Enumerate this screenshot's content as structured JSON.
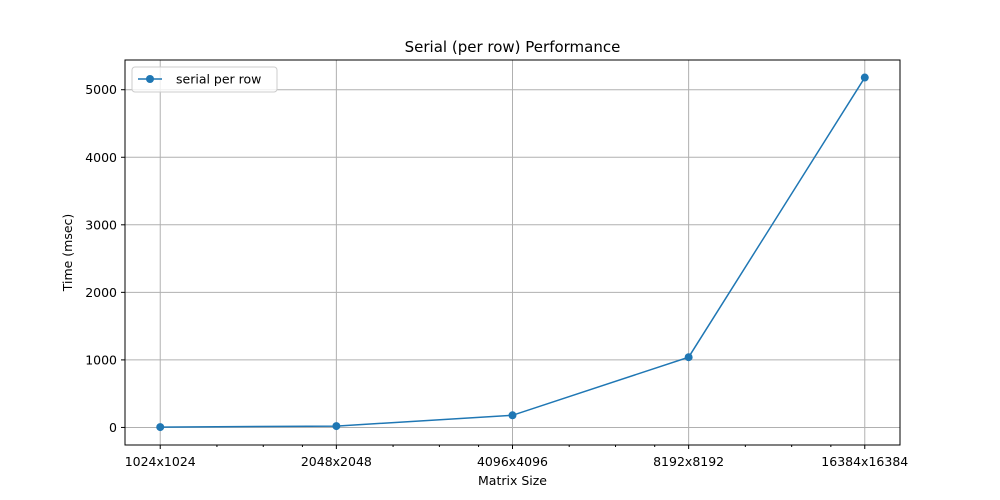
{
  "chart_data": {
    "type": "line",
    "title": "Serial (per row) Performance",
    "xlabel": "Matrix Size",
    "ylabel": "Time (msec)",
    "categories": [
      "1024x1024",
      "2048x2048",
      "4096x4096",
      "8192x8192",
      "16384x16384"
    ],
    "x_scale": "log2",
    "x_values": [
      1024,
      2048,
      4096,
      8192,
      16384
    ],
    "series": [
      {
        "name": "serial per row",
        "values": [
          5,
          20,
          180,
          1040,
          5180
        ],
        "color": "#1f77b4",
        "marker": "circle"
      }
    ],
    "ylim": [
      -260,
      5440
    ],
    "yticks": [
      0,
      1000,
      2000,
      3000,
      4000,
      5000
    ],
    "grid": true,
    "legend": "top-left"
  }
}
